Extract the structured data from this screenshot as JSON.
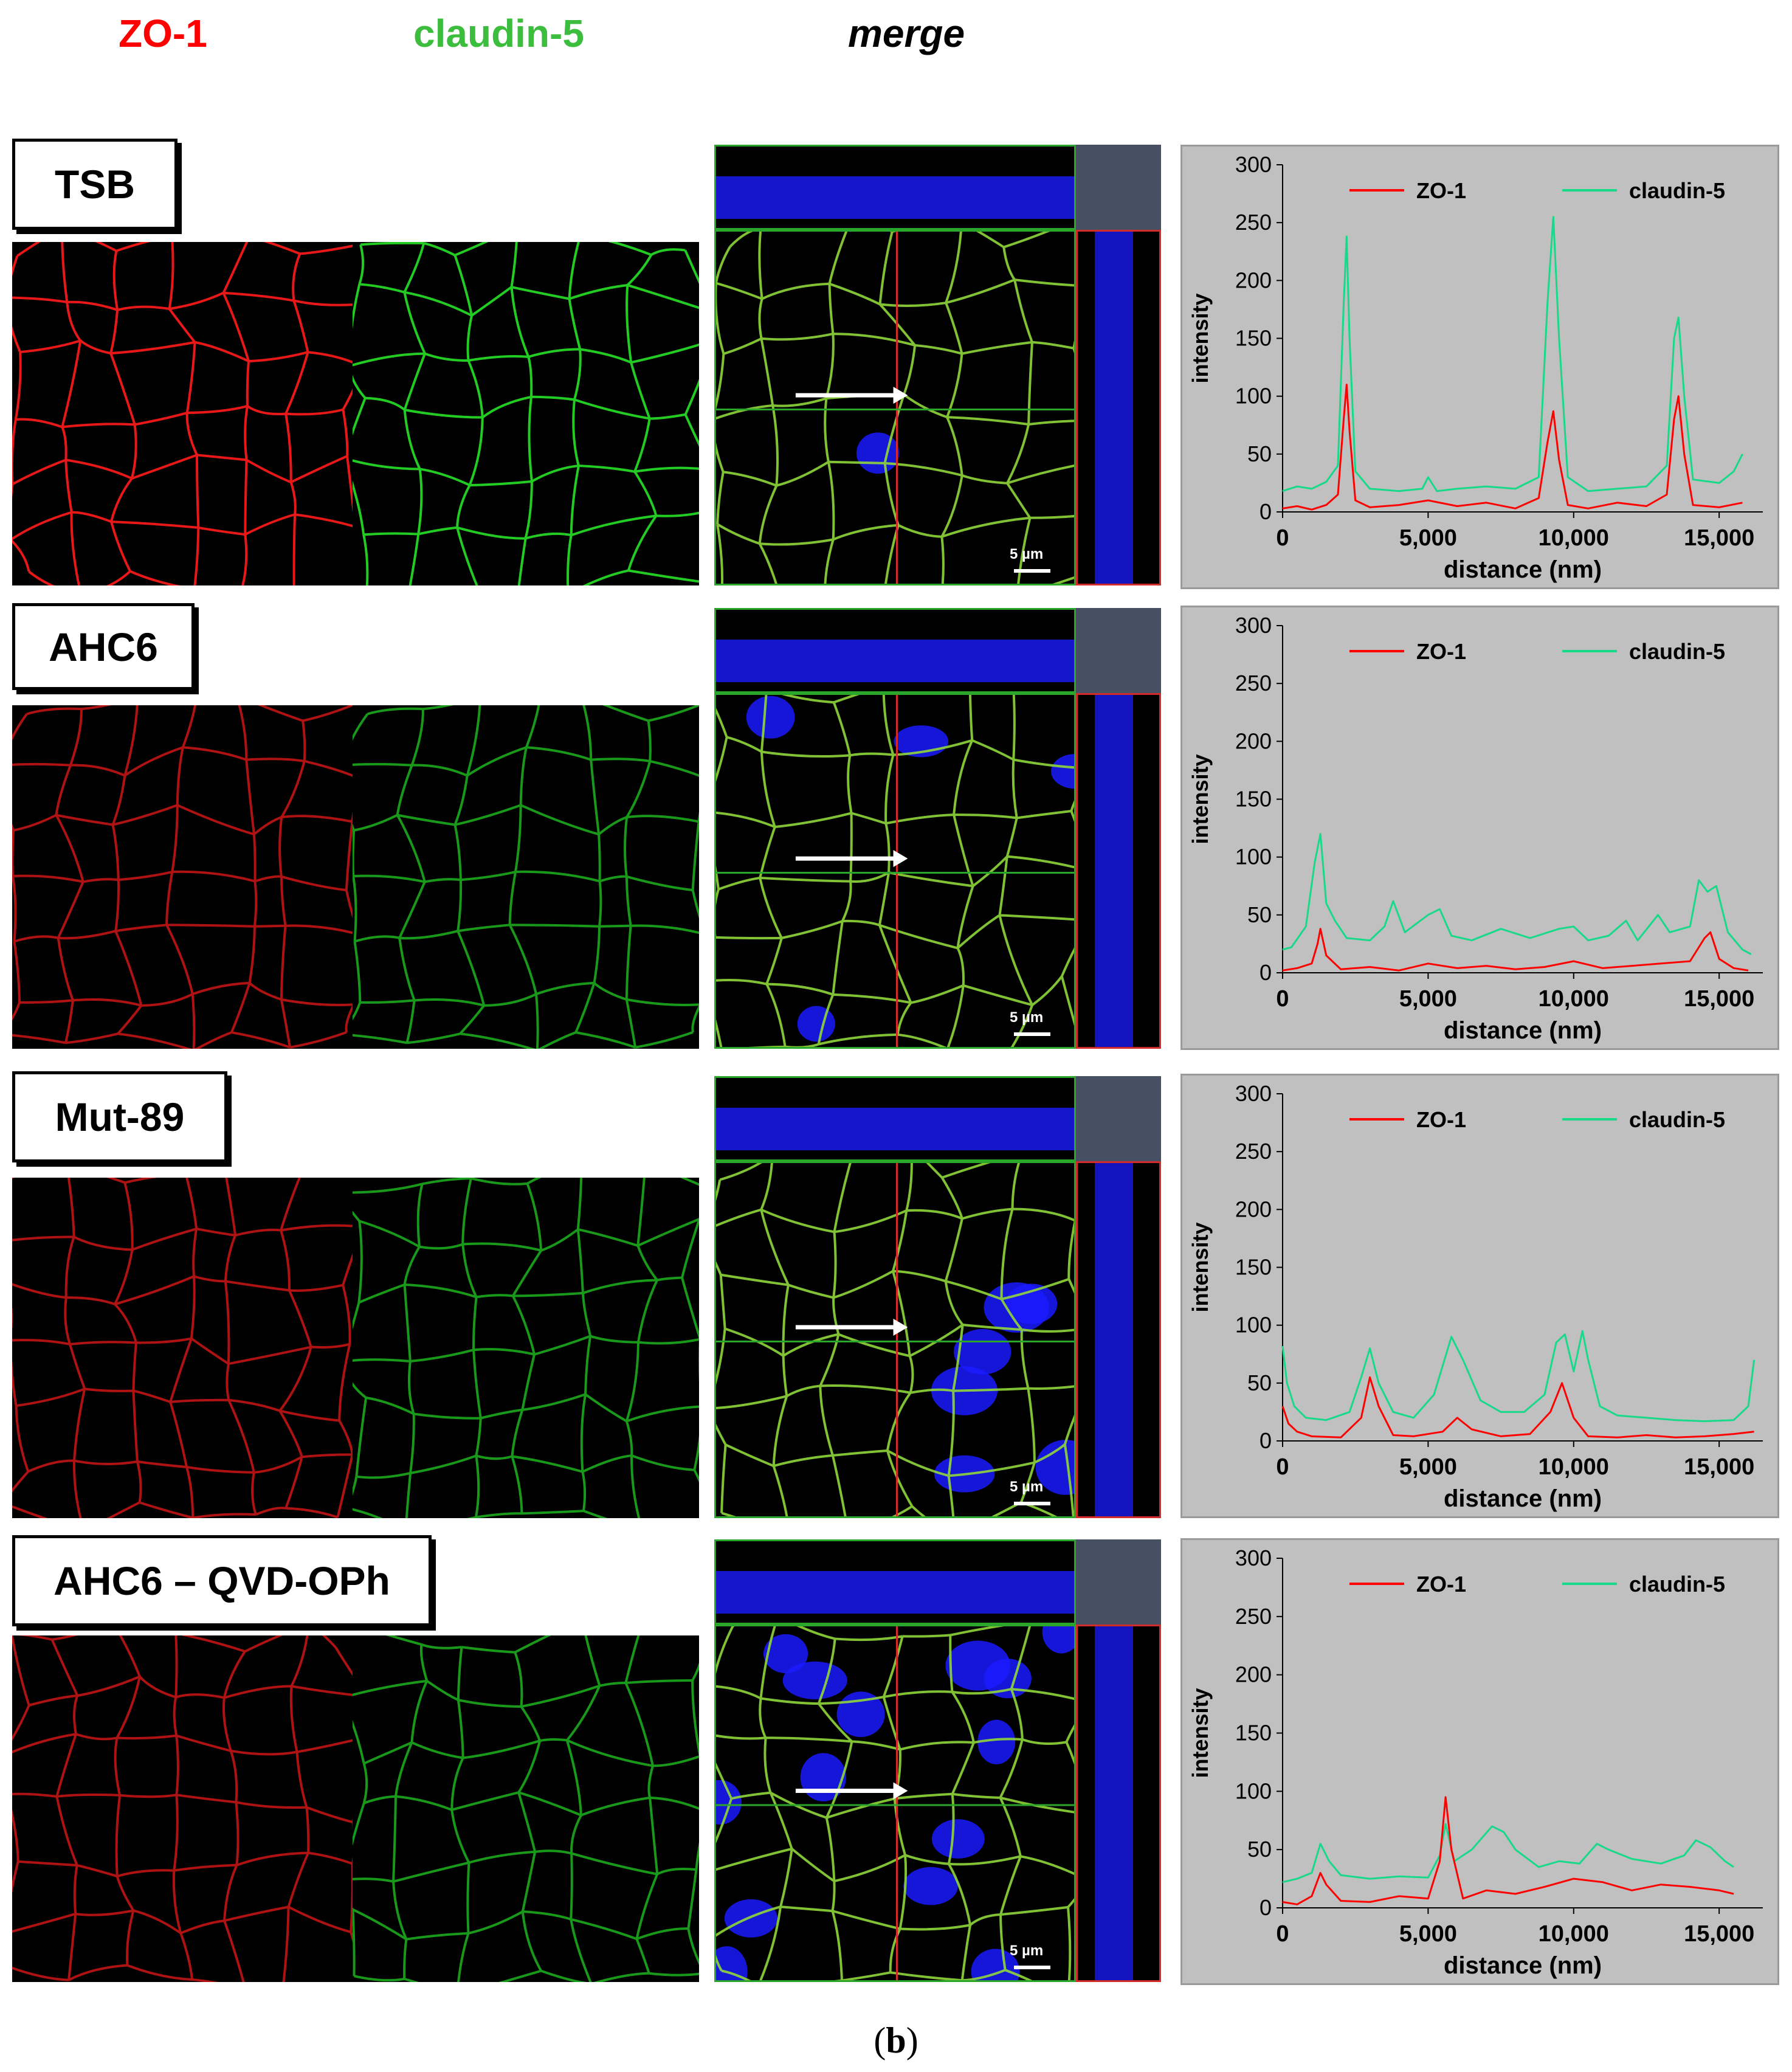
{
  "headers": {
    "red": "ZO-1",
    "green": "claudin-5",
    "merge": "merge"
  },
  "caption": {
    "open": "(",
    "letter": "b",
    "close": ")"
  },
  "scale_bar_label": "5 µm",
  "colors": {
    "zo1": "#ff0000",
    "claudin5": "#17d98a",
    "chart_bg": "#c0c0c0",
    "nuclei": "#1a1aff"
  },
  "rows": [
    {
      "label": "TSB"
    },
    {
      "label": "AHC6"
    },
    {
      "label": "Mut-89"
    },
    {
      "label": "AHC6 – QVD-OPh"
    }
  ],
  "chart_data": [
    {
      "type": "line",
      "panel": "TSB",
      "xlabel": "distance (nm)",
      "ylabel": "intensity",
      "xlim": [
        0,
        16500
      ],
      "ylim": [
        0,
        300
      ],
      "xticks": [
        0,
        5000,
        10000,
        15000
      ],
      "xtick_labels": [
        "0",
        "5,000",
        "10,000",
        "15,000"
      ],
      "yticks": [
        0,
        50,
        100,
        150,
        200,
        250,
        300
      ],
      "legend_position": "top",
      "series": [
        {
          "name": "ZO-1",
          "color": "#ff0000",
          "x": [
            0,
            500,
            1000,
            1500,
            1900,
            2100,
            2200,
            2300,
            2500,
            3000,
            4000,
            5000,
            6000,
            7000,
            8000,
            8800,
            9100,
            9300,
            9500,
            9800,
            10500,
            11500,
            12500,
            13200,
            13450,
            13600,
            13800,
            14100,
            15000,
            15800
          ],
          "y": [
            3,
            5,
            2,
            6,
            15,
            80,
            110,
            70,
            10,
            4,
            6,
            10,
            5,
            8,
            3,
            12,
            60,
            87,
            45,
            6,
            3,
            8,
            5,
            15,
            80,
            100,
            50,
            6,
            4,
            8
          ]
        },
        {
          "name": "claudin-5",
          "color": "#17d98a",
          "x": [
            0,
            500,
            1000,
            1500,
            1900,
            2100,
            2200,
            2300,
            2500,
            3000,
            4000,
            4800,
            5000,
            5300,
            6000,
            7000,
            8000,
            8800,
            9100,
            9300,
            9500,
            9800,
            10500,
            11500,
            12500,
            13200,
            13450,
            13600,
            13800,
            14100,
            15000,
            15500,
            15800
          ],
          "y": [
            18,
            22,
            20,
            26,
            40,
            180,
            238,
            150,
            35,
            20,
            18,
            20,
            30,
            18,
            20,
            22,
            20,
            30,
            180,
            255,
            150,
            30,
            18,
            20,
            22,
            40,
            150,
            168,
            100,
            28,
            25,
            35,
            50
          ]
        }
      ]
    },
    {
      "type": "line",
      "panel": "AHC6",
      "xlabel": "distance (nm)",
      "ylabel": "intensity",
      "xlim": [
        0,
        16500
      ],
      "ylim": [
        0,
        300
      ],
      "xticks": [
        0,
        5000,
        10000,
        15000
      ],
      "xtick_labels": [
        "0",
        "5,000",
        "10,000",
        "15,000"
      ],
      "yticks": [
        0,
        50,
        100,
        150,
        200,
        250,
        300
      ],
      "legend_position": "top",
      "series": [
        {
          "name": "ZO-1",
          "color": "#ff0000",
          "x": [
            0,
            500,
            1000,
            1200,
            1300,
            1500,
            2000,
            3000,
            4000,
            5000,
            6000,
            7000,
            8000,
            9000,
            10000,
            11000,
            12000,
            13000,
            14000,
            14500,
            14700,
            15000,
            15500,
            16000
          ],
          "y": [
            2,
            4,
            8,
            25,
            38,
            15,
            3,
            5,
            2,
            8,
            4,
            6,
            3,
            5,
            10,
            4,
            6,
            8,
            10,
            30,
            35,
            12,
            4,
            2
          ]
        },
        {
          "name": "claudin-5",
          "color": "#17d98a",
          "x": [
            0,
            300,
            800,
            1100,
            1300,
            1500,
            1800,
            2200,
            3000,
            3500,
            3800,
            4200,
            5000,
            5400,
            5800,
            6500,
            7500,
            8500,
            9500,
            10000,
            10500,
            11200,
            11800,
            12200,
            12900,
            13300,
            14000,
            14300,
            14600,
            14900,
            15300,
            15800,
            16100
          ],
          "y": [
            20,
            22,
            40,
            95,
            120,
            60,
            45,
            30,
            28,
            40,
            62,
            35,
            50,
            55,
            32,
            28,
            38,
            30,
            38,
            40,
            28,
            32,
            45,
            28,
            50,
            35,
            40,
            80,
            70,
            75,
            35,
            20,
            16
          ]
        }
      ]
    },
    {
      "type": "line",
      "panel": "Mut-89",
      "xlabel": "distance (nm)",
      "ylabel": "intensity",
      "xlim": [
        0,
        16500
      ],
      "ylim": [
        0,
        300
      ],
      "xticks": [
        0,
        5000,
        10000,
        15000
      ],
      "xtick_labels": [
        "0",
        "5,000",
        "10,000",
        "15,000"
      ],
      "yticks": [
        0,
        50,
        100,
        150,
        200,
        250,
        300
      ],
      "legend_position": "top",
      "series": [
        {
          "name": "ZO-1",
          "color": "#ff0000",
          "x": [
            0,
            200,
            500,
            1000,
            2000,
            2700,
            3000,
            3300,
            3800,
            4500,
            5500,
            6000,
            6500,
            7500,
            8500,
            9200,
            9600,
            10000,
            10500,
            11500,
            12500,
            13500,
            14500,
            15500,
            16200
          ],
          "y": [
            30,
            15,
            8,
            4,
            3,
            20,
            55,
            30,
            5,
            4,
            8,
            20,
            10,
            4,
            6,
            25,
            50,
            20,
            4,
            3,
            5,
            3,
            4,
            6,
            8
          ]
        },
        {
          "name": "claudin-5",
          "color": "#17d98a",
          "x": [
            0,
            150,
            400,
            800,
            1500,
            2300,
            2700,
            3000,
            3300,
            3800,
            4500,
            5200,
            5800,
            6200,
            6800,
            7500,
            8300,
            9000,
            9400,
            9700,
            10000,
            10300,
            10500,
            10900,
            11500,
            12500,
            13500,
            14500,
            15500,
            16000,
            16200
          ],
          "y": [
            82,
            50,
            30,
            20,
            18,
            25,
            55,
            80,
            50,
            25,
            20,
            40,
            90,
            70,
            35,
            25,
            25,
            40,
            85,
            92,
            60,
            95,
            70,
            30,
            22,
            20,
            18,
            17,
            18,
            30,
            70
          ]
        }
      ]
    },
    {
      "type": "line",
      "panel": "AHC6 – QVD-OPh",
      "xlabel": "distance (nm)",
      "ylabel": "intensity",
      "xlim": [
        0,
        16500
      ],
      "ylim": [
        0,
        300
      ],
      "xticks": [
        0,
        5000,
        10000,
        15000
      ],
      "xtick_labels": [
        "0",
        "5,000",
        "10,000",
        "15,000"
      ],
      "yticks": [
        0,
        50,
        100,
        150,
        200,
        250,
        300
      ],
      "legend_position": "top",
      "series": [
        {
          "name": "ZO-1",
          "color": "#ff0000",
          "x": [
            0,
            500,
            1000,
            1300,
            1500,
            2000,
            3000,
            4000,
            5000,
            5400,
            5600,
            5800,
            6200,
            7000,
            8000,
            9000,
            10000,
            11000,
            12000,
            13000,
            14000,
            15000,
            15500
          ],
          "y": [
            5,
            3,
            10,
            30,
            20,
            6,
            5,
            10,
            8,
            40,
            95,
            50,
            8,
            15,
            12,
            18,
            25,
            22,
            15,
            20,
            18,
            15,
            12
          ]
        },
        {
          "name": "claudin-5",
          "color": "#17d98a",
          "x": [
            0,
            500,
            1000,
            1300,
            1600,
            2000,
            3000,
            4000,
            5000,
            5400,
            5600,
            5900,
            6500,
            7200,
            7600,
            8000,
            8800,
            9500,
            10200,
            10800,
            11200,
            12000,
            13000,
            13800,
            14200,
            14700,
            15200,
            15500
          ],
          "y": [
            22,
            25,
            30,
            55,
            40,
            28,
            25,
            27,
            26,
            45,
            72,
            40,
            50,
            70,
            65,
            50,
            35,
            40,
            38,
            55,
            50,
            42,
            38,
            45,
            58,
            52,
            40,
            35
          ]
        }
      ]
    }
  ]
}
